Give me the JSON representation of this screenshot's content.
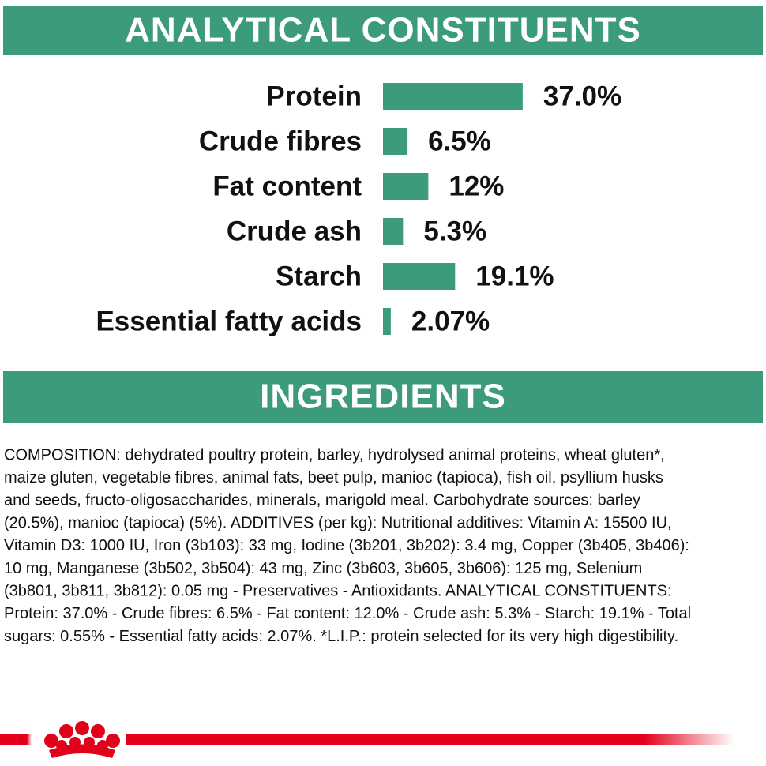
{
  "chart_data": {
    "type": "bar",
    "orientation": "horizontal",
    "title": "ANALYTICAL CONSTITUENTS",
    "categories": [
      "Protein",
      "Crude fibres",
      "Fat content",
      "Crude ash",
      "Starch",
      "Essential fatty acids"
    ],
    "values": [
      37.0,
      6.5,
      12,
      5.3,
      19.1,
      2.07
    ],
    "value_labels": [
      "37.0%",
      "6.5%",
      "12%",
      "5.3%",
      "19.1%",
      "2.07%"
    ],
    "color": "#3b9b7c"
  },
  "ingredients": {
    "title": "INGREDIENTS",
    "lines": [
      "COMPOSITION: dehydrated poultry protein, barley, hydrolysed animal proteins, wheat gluten*,",
      "maize gluten, vegetable fibres, animal fats, beet pulp, manioc (tapioca), fish oil, psyllium husks",
      "and seeds, fructo-oligosaccharides, minerals, marigold meal. Carbohydrate sources: barley",
      "(20.5%), manioc (tapioca) (5%). ADDITIVES (per kg): Nutritional additives: Vitamin A: 15500 IU,",
      "Vitamin D3: 1000 IU, Iron (3b103): 33 mg, Iodine (3b201, 3b202): 3.4 mg, Copper (3b405, 3b406):",
      "10 mg, Manganese (3b502, 3b504): 43 mg, Zinc (3b603, 3b605, 3b606): 125 mg, Selenium",
      "(3b801, 3b811, 3b812): 0.05 mg - Preservatives - Antioxidants. ANALYTICAL CONSTITUENTS:",
      "Protein: 37.0% - Crude fibres: 6.5% - Fat content: 12.0% - Crude ash: 5.3% - Starch: 19.1% - Total",
      "sugars: 0.55% - Essential fatty acids: 2.07%. *L.I.P.: protein selected for its very high digestibility."
    ]
  }
}
